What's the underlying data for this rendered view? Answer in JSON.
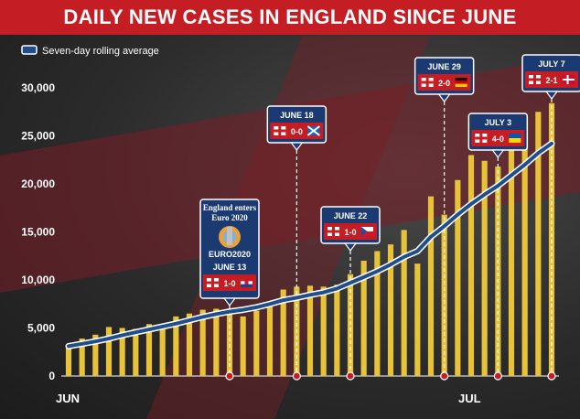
{
  "title": "DAILY NEW CASES IN ENGLAND SINCE JUNE",
  "legend": {
    "label": "Seven-day rolling average"
  },
  "colors": {
    "bar": "#e8c33a",
    "line": "#1f4e8c",
    "line_outline": "#ffffff",
    "accent": "#c41e24",
    "annotation_bg": "#1c3a72"
  },
  "annotations": [
    {
      "date": "JUNE 13",
      "top_text_1": "England enters",
      "top_text_2": "Euro 2020",
      "logo_text": "EURO2020",
      "score": "1-0",
      "opponent_flag": "croatia-flag",
      "day_index": 12
    },
    {
      "date": "JUNE 18",
      "score": "0-0",
      "opponent_flag": "scotland-flag",
      "day_index": 17
    },
    {
      "date": "JUNE 22",
      "score": "1-0",
      "opponent_flag": "czech-flag",
      "day_index": 21
    },
    {
      "date": "JUNE 29",
      "score": "2-0",
      "opponent_flag": "germany-flag",
      "day_index": 28
    },
    {
      "date": "JULY 3",
      "score": "4-0",
      "opponent_flag": "ukraine-flag",
      "day_index": 32
    },
    {
      "date": "JULY 7",
      "score": "2-1",
      "opponent_flag": "denmark-flag",
      "day_index": 36
    }
  ],
  "chart_data": {
    "type": "bar",
    "title": "DAILY NEW CASES IN ENGLAND SINCE JUNE",
    "x_labels": [
      "JUN",
      "JUL"
    ],
    "x_label_day_index": [
      0,
      30
    ],
    "ylim": [
      0,
      30000
    ],
    "yticks": [
      "0",
      "5,000",
      "10,000",
      "15,000",
      "20,000",
      "25,000",
      "30,000"
    ],
    "ytick_values": [
      0,
      5000,
      10000,
      15000,
      20000,
      25000,
      30000
    ],
    "grid": false,
    "legend_position": "top-left",
    "series": [
      {
        "name": "Daily new cases",
        "type": "bar",
        "values": [
          3000,
          3900,
          4300,
          5100,
          5000,
          4900,
          5400,
          5400,
          6200,
          6500,
          6900,
          7000,
          6700,
          6200,
          6800,
          7600,
          9000,
          9300,
          9400,
          9300,
          9500,
          10600,
          12000,
          13000,
          13700,
          15200,
          11700,
          18700,
          16800,
          20400,
          23000,
          22400,
          21800,
          25000,
          27000,
          27500,
          28400
        ]
      },
      {
        "name": "Seven-day rolling average",
        "type": "line",
        "values": [
          3100,
          3350,
          3600,
          3900,
          4250,
          4550,
          4850,
          5150,
          5450,
          5800,
          6150,
          6450,
          6700,
          6900,
          7150,
          7500,
          7900,
          8150,
          8450,
          8700,
          9100,
          9700,
          10300,
          10900,
          11600,
          12400,
          13000,
          14500,
          15600,
          16800,
          17900,
          18900,
          19800,
          20900,
          22000,
          23200,
          24200
        ]
      }
    ]
  }
}
